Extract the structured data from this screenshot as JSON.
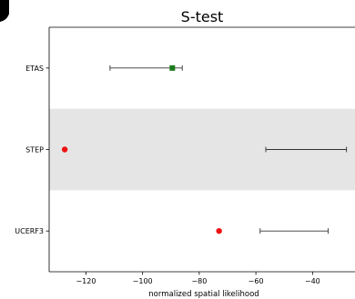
{
  "chart_data": {
    "type": "scatter",
    "title": "S-test",
    "xlabel": "normalized spatial likelihood",
    "ylabel": "",
    "xlim": [
      -133,
      -25
    ],
    "x_ticks": [
      -120,
      -100,
      -80,
      -60,
      -40
    ],
    "x_tick_labels": [
      "−120",
      "−100",
      "−80",
      "−60",
      "−40"
    ],
    "grid": false,
    "shaded_bands": [
      "STEP"
    ],
    "band_color": "#e5e5e5",
    "series": [
      {
        "categories": [
          "ETAS",
          "STEP",
          "UCERF3"
        ],
        "points": [
          {
            "label": "ETAS",
            "observed": -89.5,
            "marker": "square",
            "color": "#1a7a1a",
            "interval": [
              -111.5,
              -86
            ]
          },
          {
            "label": "STEP",
            "observed": -127.5,
            "marker": "circle",
            "color": "#ee1111",
            "interval": [
              -56.5,
              -28
            ]
          },
          {
            "label": "UCERF3",
            "observed": -73,
            "marker": "circle",
            "color": "#ee1111",
            "interval": [
              -58.5,
              -34.5
            ]
          }
        ]
      }
    ]
  }
}
